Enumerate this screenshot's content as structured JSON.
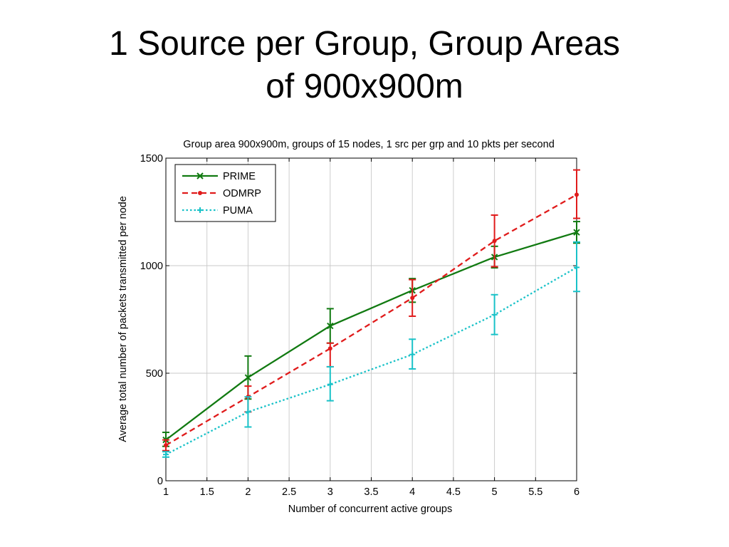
{
  "slide": {
    "title_line1": "1 Source per Group, Group Areas",
    "title_line2": "of 900x900m"
  },
  "chart_data": {
    "type": "line",
    "title": "Group area 900x900m, groups of 15 nodes, 1 src per grp and 10 pkts per second",
    "xlabel": "Number of concurrent active groups",
    "ylabel": "Average total number of packets transmitted per node",
    "x": [
      1,
      2,
      3,
      4,
      5,
      6
    ],
    "xlim": [
      1,
      6
    ],
    "ylim": [
      0,
      1500
    ],
    "xticks": [
      1,
      1.5,
      2,
      2.5,
      3,
      3.5,
      4,
      4.5,
      5,
      5.5,
      6
    ],
    "xtick_labels": [
      "1",
      "1.5",
      "2",
      "2.5",
      "3",
      "3.5",
      "4",
      "4.5",
      "5",
      "5.5",
      "6"
    ],
    "yticks": [
      0,
      500,
      1000,
      1500
    ],
    "ytick_labels": [
      "0",
      "500",
      "1000",
      "1500"
    ],
    "grid": true,
    "legend_position": "top-left",
    "series": [
      {
        "name": "PRIME",
        "color": "#117a11",
        "style": "solid",
        "marker": "x",
        "values": [
          190,
          480,
          720,
          885,
          1040,
          1155
        ],
        "err_low": [
          160,
          380,
          640,
          830,
          990,
          1105
        ],
        "err_high": [
          225,
          580,
          800,
          940,
          1090,
          1205
        ]
      },
      {
        "name": "ODMRP",
        "color": "#e01b1b",
        "style": "dashed",
        "marker": "dot",
        "values": [
          165,
          390,
          615,
          850,
          1115,
          1330
        ],
        "err_low": [
          140,
          320,
          530,
          765,
          995,
          1220
        ],
        "err_high": [
          190,
          440,
          640,
          935,
          1235,
          1445
        ]
      },
      {
        "name": "PUMA",
        "color": "#19c2c8",
        "style": "dotted",
        "marker": "plus",
        "values": [
          122,
          320,
          448,
          587,
          772,
          992
        ],
        "err_low": [
          110,
          250,
          372,
          520,
          680,
          880
        ],
        "err_high": [
          135,
          390,
          530,
          658,
          865,
          1110
        ]
      }
    ]
  }
}
